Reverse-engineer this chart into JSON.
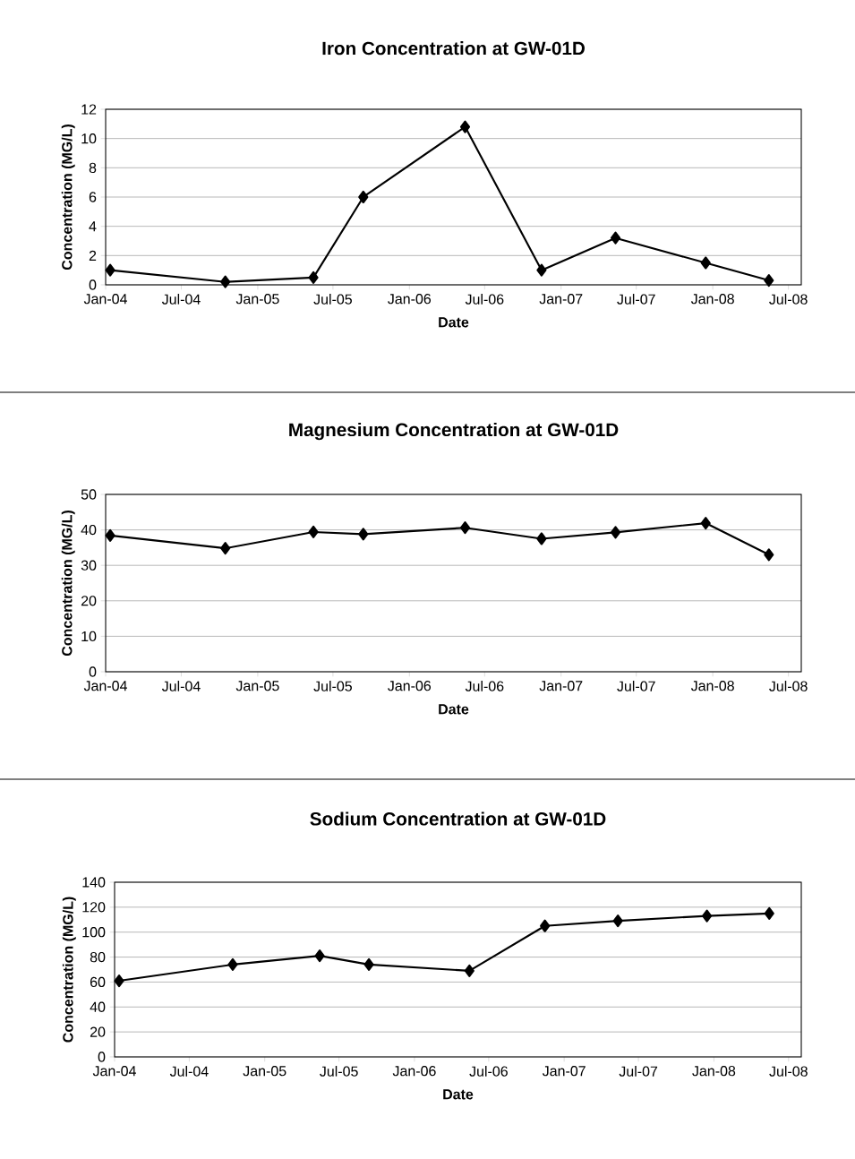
{
  "chart_data": [
    {
      "type": "line",
      "title": "Iron Concentration at GW-01D",
      "xlabel": "Date",
      "ylabel": "Concentration (MG/L)",
      "color": "#000000",
      "marker": "diamond",
      "grid": "y",
      "x": [
        "2004-01-12",
        "2004-10-15",
        "2005-05-15",
        "2005-09-12",
        "2006-05-15",
        "2006-11-15",
        "2007-05-12",
        "2007-12-15",
        "2008-05-15"
      ],
      "values": [
        1.0,
        0.2,
        0.5,
        6.0,
        10.8,
        1.0,
        3.2,
        1.5,
        0.3
      ],
      "xlim": [
        "2004-01-01",
        "2008-08-01"
      ],
      "xticks": [
        {
          "value": "2004-01-01",
          "label": "Jan-04"
        },
        {
          "value": "2004-07-01",
          "label": "Jul-04"
        },
        {
          "value": "2005-01-01",
          "label": "Jan-05"
        },
        {
          "value": "2005-07-01",
          "label": "Jul-05"
        },
        {
          "value": "2006-01-01",
          "label": "Jan-06"
        },
        {
          "value": "2006-07-01",
          "label": "Jul-06"
        },
        {
          "value": "2007-01-01",
          "label": "Jan-07"
        },
        {
          "value": "2007-07-01",
          "label": "Jul-07"
        },
        {
          "value": "2008-01-01",
          "label": "Jan-08"
        },
        {
          "value": "2008-07-01",
          "label": "Jul-08"
        }
      ],
      "ylim": [
        0,
        12
      ],
      "yticks": [
        0,
        2,
        4,
        6,
        8,
        10,
        12
      ]
    },
    {
      "type": "line",
      "title": "Magnesium Concentration at GW-01D",
      "xlabel": "Date",
      "ylabel": "Concentration (MG/L)",
      "color": "#000000",
      "marker": "diamond",
      "grid": "y",
      "x": [
        "2004-01-12",
        "2004-10-15",
        "2005-05-15",
        "2005-09-12",
        "2006-05-15",
        "2006-11-15",
        "2007-05-12",
        "2007-12-15",
        "2008-05-15"
      ],
      "values": [
        38.4,
        34.8,
        39.4,
        38.8,
        40.6,
        37.5,
        39.3,
        41.9,
        33.0
      ],
      "xlim": [
        "2004-01-01",
        "2008-08-01"
      ],
      "xticks": [
        {
          "value": "2004-01-01",
          "label": "Jan-04"
        },
        {
          "value": "2004-07-01",
          "label": "Jul-04"
        },
        {
          "value": "2005-01-01",
          "label": "Jan-05"
        },
        {
          "value": "2005-07-01",
          "label": "Jul-05"
        },
        {
          "value": "2006-01-01",
          "label": "Jan-06"
        },
        {
          "value": "2006-07-01",
          "label": "Jul-06"
        },
        {
          "value": "2007-01-01",
          "label": "Jan-07"
        },
        {
          "value": "2007-07-01",
          "label": "Jul-07"
        },
        {
          "value": "2008-01-01",
          "label": "Jan-08"
        },
        {
          "value": "2008-07-01",
          "label": "Jul-08"
        }
      ],
      "ylim": [
        0,
        50
      ],
      "yticks": [
        0,
        10,
        20,
        30,
        40,
        50
      ]
    },
    {
      "type": "line",
      "title": "Sodium Concentration at GW-01D",
      "xlabel": "Date",
      "ylabel": "Concentration (MG/L)",
      "color": "#000000",
      "marker": "diamond",
      "grid": "y",
      "x": [
        "2004-01-12",
        "2004-10-15",
        "2005-05-15",
        "2005-09-12",
        "2006-05-15",
        "2006-11-15",
        "2007-05-12",
        "2007-12-15",
        "2008-05-15"
      ],
      "values": [
        61,
        74,
        81,
        74,
        69,
        105,
        109,
        113,
        115
      ],
      "xlim": [
        "2004-01-01",
        "2008-08-01"
      ],
      "xticks": [
        {
          "value": "2004-01-01",
          "label": "Jan-04"
        },
        {
          "value": "2004-07-01",
          "label": "Jul-04"
        },
        {
          "value": "2005-01-01",
          "label": "Jan-05"
        },
        {
          "value": "2005-07-01",
          "label": "Jul-05"
        },
        {
          "value": "2006-01-01",
          "label": "Jan-06"
        },
        {
          "value": "2006-07-01",
          "label": "Jul-06"
        },
        {
          "value": "2007-01-01",
          "label": "Jan-07"
        },
        {
          "value": "2007-07-01",
          "label": "Jul-07"
        },
        {
          "value": "2008-01-01",
          "label": "Jan-08"
        },
        {
          "value": "2008-07-01",
          "label": "Jul-08"
        }
      ],
      "ylim": [
        0,
        140
      ],
      "yticks": [
        0,
        20,
        40,
        60,
        80,
        100,
        120,
        140
      ]
    }
  ]
}
